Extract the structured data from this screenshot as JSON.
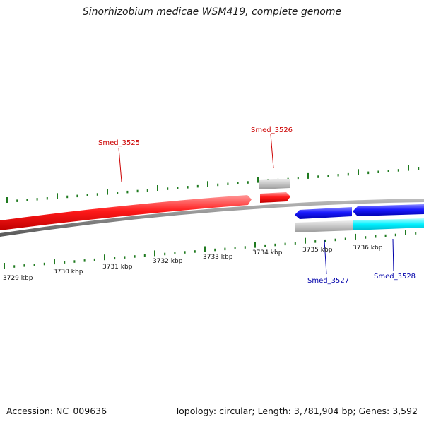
{
  "title": "Sinorhizobium medicae WSM419, complete genome",
  "footer": {
    "accession": "Accession: NC_009636",
    "summary": "Topology: circular; Length: 3,781,904 bp; Genes: 3,592"
  },
  "ruler_labels": [
    "3729 kbp",
    "3730 kbp",
    "3731 kbp",
    "3732 kbp",
    "3733 kbp",
    "3734 kbp",
    "3735 kbp",
    "3736 kbp"
  ],
  "genes": [
    {
      "label": "Smed_3525",
      "strand": "+",
      "color": "#cc0000"
    },
    {
      "label": "Smed_3526",
      "strand": "+",
      "color": "#cc0000"
    },
    {
      "label": "Smed_3527",
      "strand": "-",
      "color": "#0000aa"
    },
    {
      "label": "Smed_3528",
      "strand": "-",
      "color": "#0000aa"
    }
  ],
  "colors": {
    "forward_feature": "#ff0000",
    "reverse_feature": "#0000ff",
    "reverse_feature_light": "#00e5ff",
    "placeholder_feature": "#bfbfbf",
    "backbone": "#808080",
    "tick": "#1f7a1f"
  }
}
